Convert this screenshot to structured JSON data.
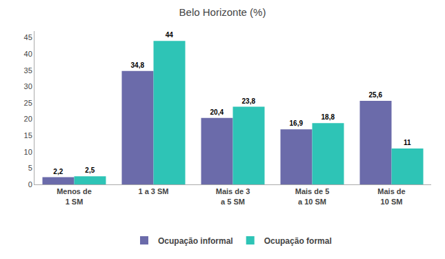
{
  "chart_data": {
    "type": "bar",
    "title": "Belo Horizonte (%)",
    "categories": [
      "Menos de\n1 SM",
      "1 a 3 SM",
      "Mais de 3\na 5 SM",
      "Mais de 5\na 10 SM",
      "Mais de\n10 SM"
    ],
    "series": [
      {
        "name": "Ocupação informal",
        "color": "#6B6BAA",
        "values": [
          2.2,
          34.8,
          20.4,
          16.9,
          25.6
        ],
        "value_labels": [
          "2,2",
          "34,8",
          "20,4",
          "16,9",
          "25,6"
        ]
      },
      {
        "name": "Ocupação formal",
        "color": "#2EC4B6",
        "values": [
          2.5,
          44.0,
          23.8,
          18.8,
          11.0
        ],
        "value_labels": [
          "2,5",
          "44",
          "23,8",
          "18,8",
          "11"
        ]
      }
    ],
    "ylim": [
      0,
      47
    ],
    "yticks": [
      0,
      5,
      10,
      15,
      20,
      25,
      30,
      35,
      40,
      45
    ],
    "grid": false,
    "legend": "bottom",
    "data_labels": true
  }
}
